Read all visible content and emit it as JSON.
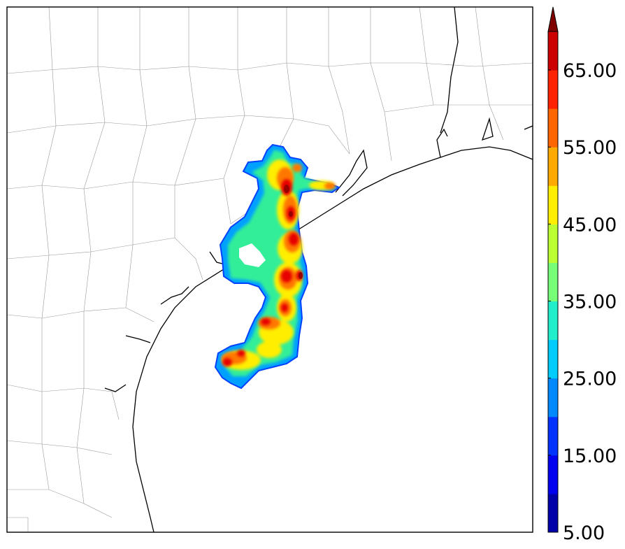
{
  "map": {
    "colorbar": {
      "extend": "max",
      "levels": [
        5,
        10,
        15,
        20,
        25,
        30,
        35,
        40,
        45,
        50,
        55,
        60,
        65,
        70
      ],
      "colors": [
        "#0000aa",
        "#0000ee",
        "#0033ff",
        "#0088ff",
        "#00ccff",
        "#22eecc",
        "#77ff77",
        "#bbff33",
        "#ffee00",
        "#ffaa00",
        "#ff6600",
        "#ff2200",
        "#cc0000"
      ],
      "extend_color": "#800000",
      "tick_labels": [
        "5.00",
        "15.00",
        "25.00",
        "35.00",
        "45.00",
        "55.00",
        "65.00"
      ]
    },
    "layers": [
      "county-boundaries",
      "coastline",
      "reflectivity-field"
    ]
  }
}
